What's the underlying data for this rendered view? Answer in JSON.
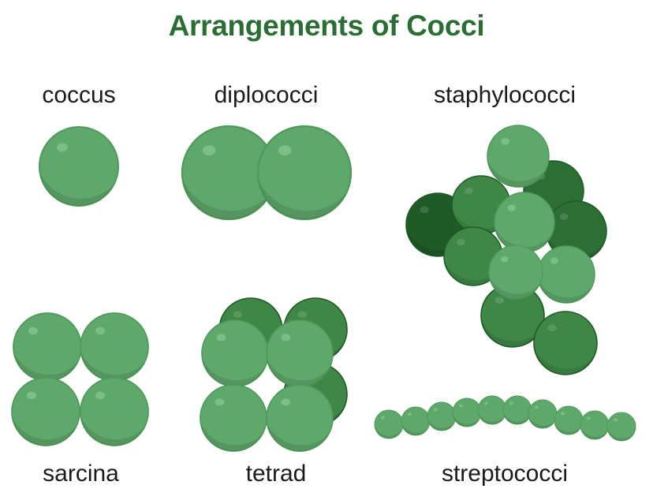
{
  "title": "Arrangements of Cocci",
  "colors": {
    "title": "#2a6e33",
    "cell_light": "#5fa86b",
    "cell_light_edge": "#4f9a5b",
    "cell_mid": "#3e8747",
    "cell_dark": "#2d6e35",
    "cell_darkest": "#1f5a27",
    "highlight": "#86c690"
  },
  "labels": {
    "coccus": "coccus",
    "diplococci": "diplococci",
    "staphylococci": "staphylococci",
    "sarcina": "sarcina",
    "tetrad": "tetrad",
    "streptococci": "streptococci"
  }
}
